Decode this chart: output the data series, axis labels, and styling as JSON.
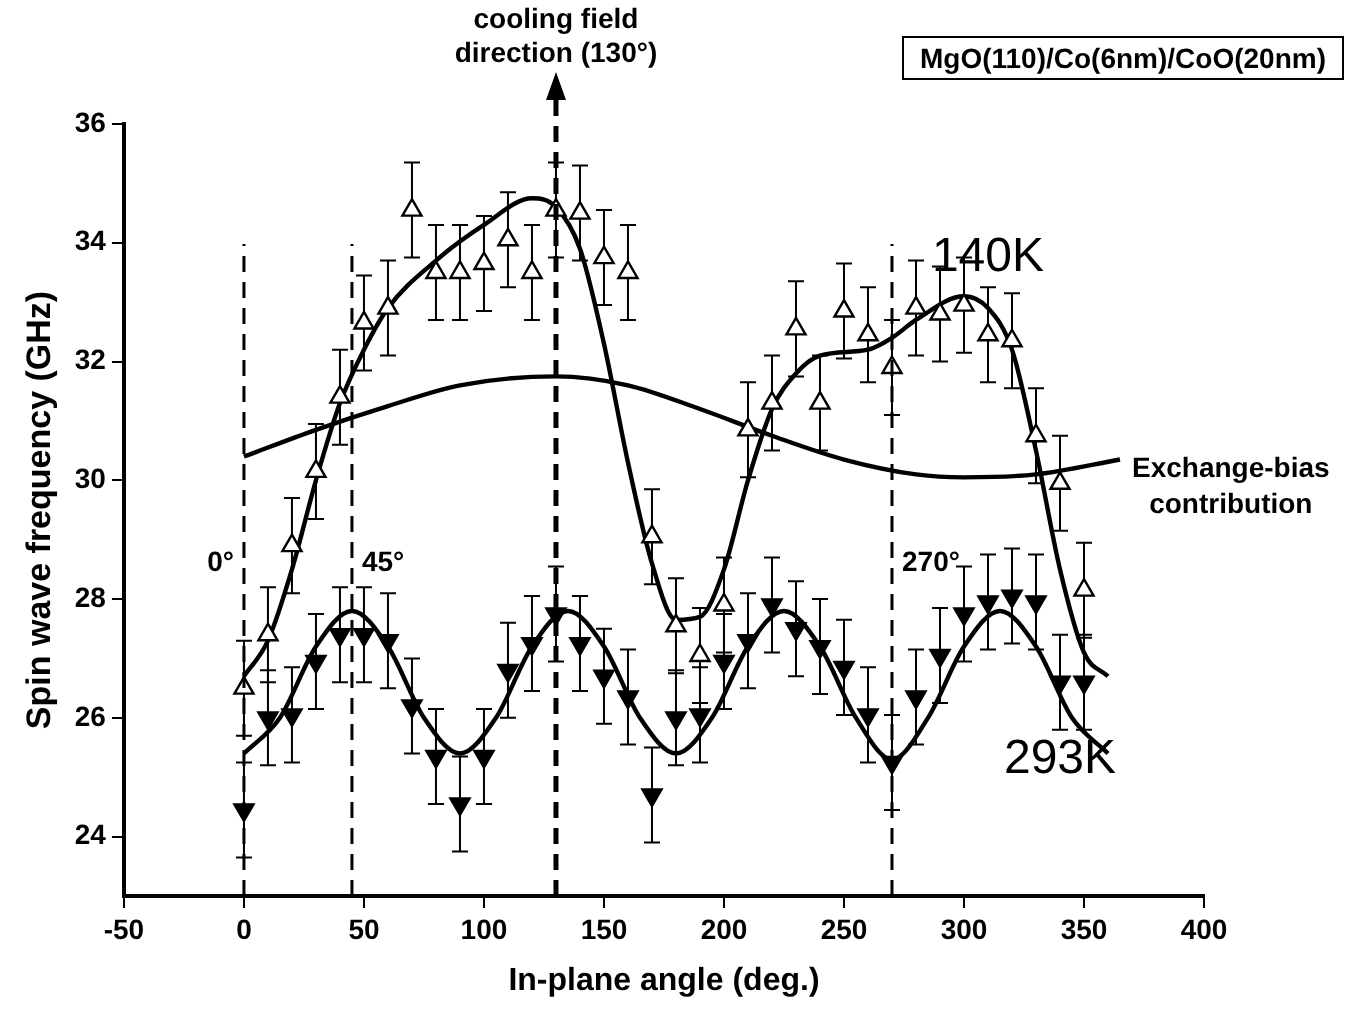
{
  "chart_data": {
    "type": "scatter",
    "xlabel": "In-plane angle (deg.)",
    "ylabel": "Spin wave frequency (GHz)",
    "xlim": [
      -50,
      400
    ],
    "xticks": [
      -50,
      0,
      50,
      100,
      150,
      200,
      250,
      300,
      350,
      400
    ],
    "ylim": [
      23,
      36
    ],
    "yticks": [
      24,
      26,
      28,
      30,
      32,
      34,
      36
    ],
    "series": [
      {
        "type": "scatter",
        "name": "140K",
        "color": "#000000",
        "marker": "triangle",
        "x": [
          0,
          10,
          20,
          30,
          40,
          50,
          60,
          70,
          80,
          90,
          100,
          110,
          120,
          130,
          140,
          150,
          160,
          170,
          180,
          190,
          200,
          210,
          220,
          230,
          240,
          250,
          260,
          270,
          280,
          290,
          300,
          310,
          320,
          330,
          340,
          350
        ],
        "values": [
          26.5,
          27.4,
          28.9,
          30.15,
          31.4,
          32.65,
          32.9,
          34.55,
          33.5,
          33.5,
          33.65,
          34.05,
          33.5,
          34.55,
          34.5,
          33.75,
          33.5,
          29.05,
          27.55,
          27.05,
          27.9,
          30.85,
          31.3,
          32.55,
          31.3,
          32.85,
          32.45,
          31.9,
          32.9,
          32.8,
          32.95,
          32.45,
          32.35,
          30.75,
          29.95,
          28.15
        ],
        "errors": [
          0.8,
          0.8,
          0.8,
          0.8,
          0.8,
          0.8,
          0.8,
          0.8,
          0.8,
          0.8,
          0.8,
          0.8,
          0.8,
          0.8,
          0.8,
          0.8,
          0.8,
          0.8,
          0.8,
          0.8,
          0.8,
          0.8,
          0.8,
          0.8,
          0.8,
          0.8,
          0.8,
          0.8,
          0.8,
          0.8,
          0.8,
          0.8,
          0.8,
          0.8,
          0.8,
          0.8
        ]
      },
      {
        "type": "scatter",
        "name": "293K",
        "color": "#000000",
        "marker": "triangle",
        "x": [
          0,
          10,
          20,
          30,
          40,
          50,
          60,
          70,
          80,
          90,
          100,
          110,
          120,
          130,
          140,
          150,
          160,
          170,
          180,
          190,
          200,
          210,
          220,
          230,
          240,
          250,
          260,
          270,
          280,
          290,
          300,
          310,
          320,
          330,
          340,
          350
        ],
        "values": [
          24.45,
          26.0,
          26.05,
          26.95,
          27.4,
          27.4,
          27.3,
          26.2,
          25.35,
          24.55,
          25.35,
          26.8,
          27.25,
          27.75,
          27.25,
          26.7,
          26.35,
          24.7,
          26.0,
          26.05,
          26.95,
          27.3,
          27.9,
          27.5,
          27.2,
          26.85,
          26.05,
          25.25,
          26.35,
          27.05,
          27.75,
          27.95,
          28.05,
          27.95,
          26.6,
          26.6
        ],
        "errors": [
          0.8,
          0.8,
          0.8,
          0.8,
          0.8,
          0.8,
          0.8,
          0.8,
          0.8,
          0.8,
          0.8,
          0.8,
          0.8,
          0.8,
          0.8,
          0.8,
          0.8,
          0.8,
          0.8,
          0.8,
          0.8,
          0.8,
          0.8,
          0.8,
          0.8,
          0.8,
          0.8,
          0.8,
          0.8,
          0.8,
          0.8,
          0.8,
          0.8,
          0.8,
          0.8,
          0.8
        ]
      },
      {
        "type": "line",
        "color": "#000000",
        "marker": "none",
        "x": [
          0,
          10,
          20,
          30,
          40,
          50,
          60,
          80,
          100,
          120,
          130,
          140,
          150,
          160,
          170,
          180,
          190,
          200,
          210,
          220,
          230,
          240,
          260,
          270,
          280,
          300,
          310,
          320,
          330,
          340,
          350,
          360
        ],
        "values": [
          26.7,
          27.3,
          28.5,
          30.0,
          31.3,
          32.2,
          32.9,
          33.7,
          34.3,
          34.75,
          34.6,
          33.9,
          32.3,
          30.3,
          28.6,
          27.65,
          27.7,
          28.5,
          30.0,
          31.2,
          31.8,
          32.1,
          32.2,
          32.4,
          32.7,
          33.1,
          32.9,
          32.2,
          30.5,
          28.5,
          27.1,
          26.7
        ]
      },
      {
        "type": "line",
        "color": "#000000",
        "marker": "none",
        "x": [
          0,
          15,
          30,
          45,
          60,
          75,
          90,
          105,
          120,
          135,
          150,
          165,
          180,
          195,
          210,
          225,
          240,
          255,
          270,
          285,
          300,
          315,
          330,
          345,
          360
        ],
        "values": [
          25.4,
          26.0,
          27.2,
          27.8,
          27.2,
          26.0,
          25.4,
          26.0,
          27.2,
          27.8,
          27.2,
          26.0,
          25.4,
          26.0,
          27.2,
          27.8,
          27.2,
          26.0,
          25.3,
          26.0,
          27.2,
          27.8,
          27.2,
          26.0,
          25.4
        ]
      },
      {
        "type": "line",
        "name": "Exchange-bias contribution",
        "color": "#000000",
        "marker": "none",
        "x": [
          0,
          30,
          60,
          90,
          130,
          160,
          190,
          220,
          250,
          280,
          300,
          330,
          365
        ],
        "values": [
          30.4,
          30.85,
          31.25,
          31.6,
          31.75,
          31.6,
          31.2,
          30.75,
          30.35,
          30.1,
          30.05,
          30.1,
          30.35
        ]
      }
    ],
    "ref_lines": [
      {
        "axis": "x",
        "value": 0,
        "label": "0°",
        "line_style": "dashed",
        "color": "#000000"
      },
      {
        "axis": "x",
        "value": 45,
        "label": "45°",
        "line_style": "dashed",
        "color": "#000000"
      },
      {
        "axis": "x",
        "value": 130,
        "label": "cooling field direction (130°)",
        "line_style": "dashed",
        "color": "#000000"
      },
      {
        "axis": "x",
        "value": 270,
        "label": "270°",
        "line_style": "dashed",
        "color": "#000000"
      }
    ],
    "annotations": [
      "MgO(110)/Co(6nm)/CoO(20nm)"
    ]
  }
}
